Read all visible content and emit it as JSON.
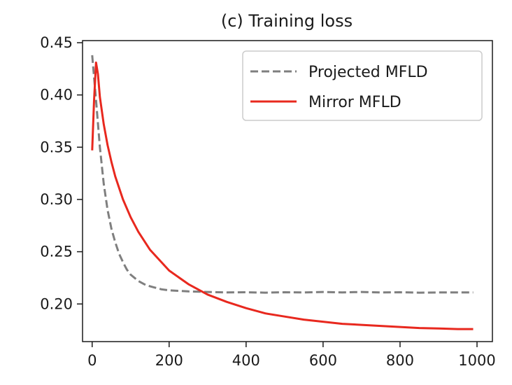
{
  "chart_data": {
    "type": "line",
    "title": "(c) Training loss",
    "xlabel": "",
    "ylabel": "",
    "xlim": [
      -25,
      1040
    ],
    "ylim": [
      0.164,
      0.452
    ],
    "xticks": [
      0,
      200,
      400,
      600,
      800,
      1000
    ],
    "xtick_labels": [
      "0",
      "200",
      "400",
      "600",
      "800",
      "1000"
    ],
    "yticks": [
      0.2,
      0.25,
      0.3,
      0.35,
      0.4,
      0.45
    ],
    "ytick_labels": [
      "0.20",
      "0.25",
      "0.30",
      "0.35",
      "0.40",
      "0.45"
    ],
    "grid": false,
    "legend_position": "top-right",
    "series": [
      {
        "name": "Projected MFLD",
        "style": "dashed",
        "color": "#7f7f7f",
        "x": [
          0,
          10,
          20,
          30,
          40,
          50,
          60,
          70,
          80,
          90,
          100,
          120,
          140,
          160,
          180,
          200,
          250,
          300,
          350,
          400,
          450,
          500,
          550,
          600,
          650,
          700,
          750,
          800,
          850,
          900,
          950,
          990
        ],
        "y": [
          0.438,
          0.395,
          0.35,
          0.315,
          0.29,
          0.272,
          0.259,
          0.248,
          0.24,
          0.233,
          0.228,
          0.222,
          0.218,
          0.216,
          0.214,
          0.213,
          0.212,
          0.2115,
          0.211,
          0.2112,
          0.2108,
          0.2112,
          0.211,
          0.2115,
          0.211,
          0.2115,
          0.211,
          0.2112,
          0.2108,
          0.211,
          0.211,
          0.211
        ]
      },
      {
        "name": "Mirror MFLD",
        "style": "solid",
        "color": "#e8281e",
        "x": [
          0,
          5,
          10,
          15,
          20,
          30,
          40,
          50,
          60,
          80,
          100,
          120,
          150,
          200,
          250,
          300,
          350,
          400,
          450,
          500,
          550,
          600,
          650,
          700,
          750,
          800,
          850,
          900,
          950,
          990
        ],
        "y": [
          0.347,
          0.395,
          0.431,
          0.42,
          0.398,
          0.372,
          0.352,
          0.336,
          0.322,
          0.3,
          0.283,
          0.269,
          0.252,
          0.232,
          0.219,
          0.209,
          0.202,
          0.196,
          0.191,
          0.188,
          0.185,
          0.183,
          0.181,
          0.18,
          0.179,
          0.178,
          0.177,
          0.1765,
          0.176,
          0.176
        ]
      }
    ]
  }
}
